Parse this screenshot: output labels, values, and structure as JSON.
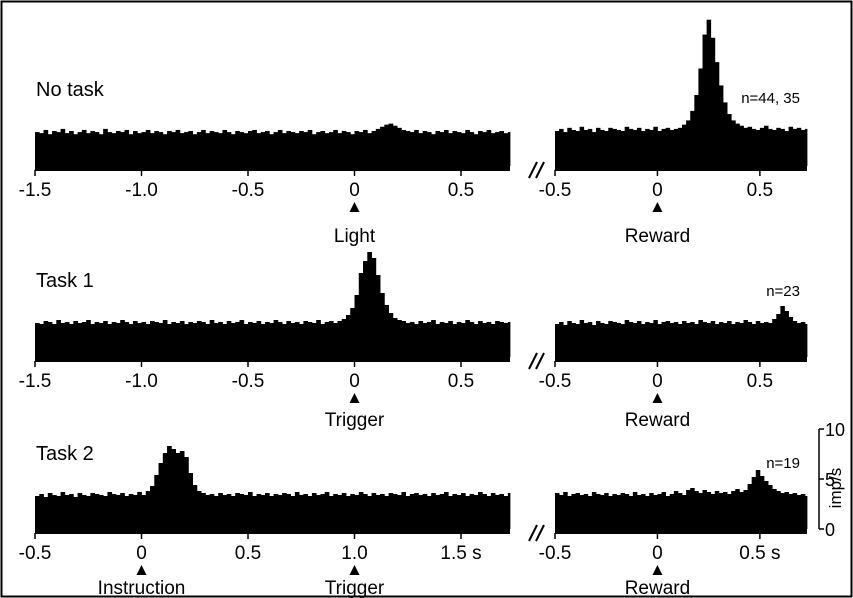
{
  "chart_data": [
    {
      "type": "bar",
      "panel_label": "No task",
      "x_unit": "s",
      "xlim": [
        -1.5,
        0.73
      ],
      "ylim": [
        0,
        10
      ],
      "tick_labels": [
        "-1.5",
        "-1.0",
        "-0.5",
        "0",
        "0.5"
      ],
      "tick_values": [
        -1.5,
        -1.0,
        -0.5,
        0,
        0.5
      ],
      "event_markers": [
        {
          "x": 0,
          "label": "Light"
        }
      ],
      "bin_width": 0.02,
      "bins_start": -1.5,
      "values": [
        3.2,
        3.1,
        3.4,
        3.0,
        3.3,
        3.2,
        3.5,
        3.1,
        3.3,
        3.0,
        3.2,
        3.4,
        3.1,
        3.3,
        3.2,
        3.0,
        3.5,
        3.2,
        3.1,
        3.3,
        3.2,
        3.4,
        3.0,
        3.3,
        3.1,
        3.2,
        3.4,
        3.1,
        3.3,
        3.2,
        3.0,
        3.3,
        3.2,
        3.4,
        3.1,
        3.2,
        3.3,
        3.0,
        3.2,
        3.4,
        3.1,
        3.3,
        3.2,
        3.1,
        3.4,
        3.2,
        3.0,
        3.3,
        3.2,
        3.1,
        3.3,
        3.4,
        3.1,
        3.2,
        3.3,
        3.0,
        3.2,
        3.4,
        3.1,
        3.3,
        3.2,
        3.1,
        3.3,
        3.2,
        3.4,
        3.0,
        3.2,
        3.3,
        3.1,
        3.2,
        3.4,
        3.1,
        3.3,
        3.2,
        3.0,
        3.3,
        3.2,
        3.4,
        3.1,
        3.3,
        3.5,
        3.7,
        3.9,
        4.0,
        3.8,
        3.6,
        3.4,
        3.3,
        3.2,
        3.4,
        3.1,
        3.3,
        3.2,
        3.0,
        3.3,
        3.2,
        3.4,
        3.1,
        3.3,
        3.2,
        3.1,
        3.4,
        3.2,
        3.0,
        3.3,
        3.2,
        3.4,
        3.1,
        3.2,
        3.3,
        3.1,
        3.2
      ]
    },
    {
      "type": "bar",
      "panel_label": "No task",
      "n_label": "n=44, 35",
      "x_unit": "s",
      "xlim": [
        -0.5,
        0.73
      ],
      "ylim": [
        0,
        10
      ],
      "tick_labels": [
        "-0.5",
        "0",
        "0.5"
      ],
      "tick_values": [
        -0.5,
        0,
        0.5
      ],
      "event_markers": [
        {
          "x": 0,
          "label": "Reward"
        }
      ],
      "bin_width": 0.02,
      "bins_start": -0.5,
      "values": [
        3.3,
        3.5,
        3.2,
        3.6,
        3.4,
        3.3,
        3.7,
        3.4,
        3.5,
        3.2,
        3.6,
        3.4,
        3.3,
        3.6,
        3.5,
        3.4,
        3.3,
        3.7,
        3.5,
        3.4,
        3.6,
        3.3,
        3.5,
        3.4,
        3.7,
        3.3,
        3.5,
        3.6,
        3.4,
        3.5,
        3.6,
        3.9,
        4.3,
        5.2,
        6.7,
        9.2,
        12.4,
        13.8,
        12.1,
        9.8,
        7.6,
        6.0,
        4.9,
        4.3,
        4.0,
        3.8,
        3.6,
        3.7,
        3.5,
        3.4,
        3.6,
        3.8,
        3.5,
        3.4,
        3.6,
        3.5,
        3.3,
        3.7,
        3.5,
        3.6,
        3.4,
        3.5
      ]
    },
    {
      "type": "bar",
      "panel_label": "Task 1",
      "x_unit": "s",
      "xlim": [
        -1.5,
        0.73
      ],
      "ylim": [
        0,
        10
      ],
      "tick_labels": [
        "-1.5",
        "-1.0",
        "-0.5",
        "0",
        "0.5"
      ],
      "tick_values": [
        -1.5,
        -1.0,
        -0.5,
        0,
        0.5
      ],
      "event_markers": [
        {
          "x": 0,
          "label": "Trigger"
        }
      ],
      "bin_width": 0.02,
      "bins_start": -1.5,
      "values": [
        3.4,
        3.3,
        3.6,
        3.5,
        3.3,
        3.7,
        3.4,
        3.5,
        3.3,
        3.6,
        3.4,
        3.5,
        3.7,
        3.3,
        3.5,
        3.4,
        3.6,
        3.3,
        3.5,
        3.4,
        3.7,
        3.5,
        3.3,
        3.6,
        3.4,
        3.5,
        3.3,
        3.6,
        3.5,
        3.4,
        3.7,
        3.3,
        3.5,
        3.4,
        3.6,
        3.3,
        3.5,
        3.4,
        3.6,
        3.5,
        3.3,
        3.7,
        3.4,
        3.5,
        3.3,
        3.6,
        3.4,
        3.5,
        3.7,
        3.3,
        3.5,
        3.4,
        3.6,
        3.3,
        3.5,
        3.4,
        3.7,
        3.5,
        3.3,
        3.6,
        3.4,
        3.5,
        3.3,
        3.6,
        3.5,
        3.4,
        3.7,
        3.3,
        3.5,
        3.6,
        3.4,
        3.6,
        3.8,
        4.2,
        4.9,
        6.2,
        8.4,
        9.6,
        10.5,
        9.9,
        8.2,
        6.4,
        5.2,
        4.4,
        3.9,
        3.7,
        3.6,
        3.4,
        3.5,
        3.3,
        3.6,
        3.4,
        3.5,
        3.7,
        3.3,
        3.5,
        3.4,
        3.6,
        3.3,
        3.5,
        3.4,
        3.7,
        3.5,
        3.3,
        3.6,
        3.4,
        3.5,
        3.3,
        3.6,
        3.5,
        3.4,
        3.5
      ]
    },
    {
      "type": "bar",
      "panel_label": "Task 1",
      "n_label": "n=23",
      "x_unit": "s",
      "xlim": [
        -0.5,
        0.73
      ],
      "ylim": [
        0,
        10
      ],
      "tick_labels": [
        "-0.5",
        "0",
        "0.5"
      ],
      "tick_values": [
        -0.5,
        0,
        0.5
      ],
      "event_markers": [
        {
          "x": 0,
          "label": "Reward"
        }
      ],
      "bin_width": 0.02,
      "bins_start": -0.5,
      "values": [
        3.3,
        3.5,
        3.2,
        3.6,
        3.4,
        3.3,
        3.7,
        3.4,
        3.5,
        3.2,
        3.6,
        3.4,
        3.3,
        3.6,
        3.5,
        3.4,
        3.3,
        3.7,
        3.5,
        3.4,
        3.6,
        3.3,
        3.5,
        3.4,
        3.7,
        3.3,
        3.5,
        3.6,
        3.4,
        3.5,
        3.3,
        3.6,
        3.4,
        3.5,
        3.3,
        3.7,
        3.5,
        3.4,
        3.6,
        3.3,
        3.5,
        3.4,
        3.6,
        3.3,
        3.5,
        3.4,
        3.7,
        3.5,
        3.3,
        3.6,
        3.4,
        3.5,
        3.4,
        3.8,
        4.3,
        5.1,
        4.6,
        4.0,
        3.6,
        3.4,
        3.5,
        3.3
      ]
    },
    {
      "type": "bar",
      "panel_label": "Task 2",
      "x_unit": "s",
      "xlim": [
        -0.5,
        1.73
      ],
      "ylim": [
        0,
        10
      ],
      "tick_labels": [
        "-0.5",
        "0",
        "0.5",
        "1.0",
        "1.5 s"
      ],
      "tick_values": [
        -0.5,
        0,
        0.5,
        1.0,
        1.5
      ],
      "event_markers": [
        {
          "x": 0,
          "label": "Instruction"
        },
        {
          "x": 1.0,
          "label": "Trigger"
        }
      ],
      "bin_width": 0.02,
      "bins_start": -0.5,
      "values": [
        3.3,
        3.5,
        3.2,
        3.6,
        3.4,
        3.3,
        3.7,
        3.4,
        3.5,
        3.2,
        3.6,
        3.4,
        3.3,
        3.6,
        3.5,
        3.4,
        3.3,
        3.7,
        3.5,
        3.4,
        3.6,
        3.3,
        3.5,
        3.4,
        3.7,
        3.4,
        3.8,
        4.3,
        5.4,
        6.6,
        7.6,
        8.3,
        8.0,
        7.6,
        7.8,
        7.2,
        5.6,
        4.4,
        3.8,
        3.6,
        3.4,
        3.5,
        3.3,
        3.6,
        3.4,
        3.5,
        3.3,
        3.6,
        3.5,
        3.4,
        3.7,
        3.3,
        3.5,
        3.4,
        3.6,
        3.3,
        3.5,
        3.4,
        3.6,
        3.5,
        3.3,
        3.7,
        3.4,
        3.5,
        3.3,
        3.6,
        3.4,
        3.5,
        3.7,
        3.3,
        3.5,
        3.4,
        3.6,
        3.3,
        3.5,
        3.4,
        3.7,
        3.5,
        3.3,
        3.6,
        3.4,
        3.5,
        3.3,
        3.6,
        3.5,
        3.4,
        3.7,
        3.3,
        3.5,
        3.6,
        3.4,
        3.5,
        3.3,
        3.6,
        3.4,
        3.5,
        3.7,
        3.3,
        3.5,
        3.4,
        3.6,
        3.3,
        3.5,
        3.4,
        3.7,
        3.5,
        3.3,
        3.6,
        3.4,
        3.5,
        3.3,
        3.6
      ]
    },
    {
      "type": "bar",
      "panel_label": "Task 2",
      "n_label": "n=19",
      "x_unit": "s",
      "xlim": [
        -0.5,
        0.73
      ],
      "ylim": [
        0,
        10
      ],
      "tick_labels": [
        "-0.5",
        "0",
        "0.5 s"
      ],
      "tick_values": [
        -0.5,
        0,
        0.5
      ],
      "event_markers": [
        {
          "x": 0,
          "label": "Reward"
        }
      ],
      "bin_width": 0.02,
      "bins_start": -0.5,
      "values": [
        3.6,
        3.4,
        3.7,
        3.3,
        3.5,
        3.6,
        3.4,
        3.5,
        3.3,
        3.7,
        3.5,
        3.4,
        3.6,
        3.3,
        3.5,
        3.4,
        3.6,
        3.5,
        3.3,
        3.7,
        3.4,
        3.5,
        3.3,
        3.6,
        3.4,
        3.5,
        3.7,
        3.3,
        3.5,
        3.8,
        3.6,
        3.4,
        3.9,
        4.1,
        3.8,
        3.6,
        3.9,
        3.7,
        3.5,
        3.8,
        3.6,
        3.7,
        3.5,
        3.8,
        4.0,
        3.7,
        3.9,
        4.5,
        5.2,
        5.9,
        5.3,
        4.8,
        4.4,
        4.0,
        3.8,
        3.6,
        3.7,
        3.5,
        3.6,
        3.4,
        3.5,
        3.3
      ]
    }
  ],
  "scale_bar": {
    "unit_label": "imp/s",
    "tick_labels": [
      "10",
      "5",
      "0"
    ],
    "tick_values": [
      10,
      5,
      0
    ]
  }
}
